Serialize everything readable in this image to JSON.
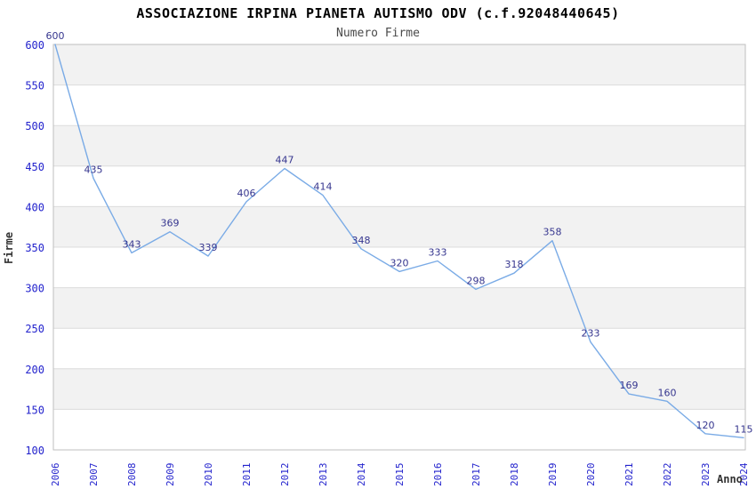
{
  "chart_data": {
    "type": "line",
    "title": "ASSOCIAZIONE IRPINA PIANETA AUTISMO ODV (c.f.92048440645)",
    "subtitle": "Numero Firme",
    "xlabel": "Anno",
    "ylabel": "Firme",
    "categories": [
      "2006",
      "2007",
      "2008",
      "2009",
      "2010",
      "2011",
      "2012",
      "2013",
      "2014",
      "2015",
      "2016",
      "2017",
      "2018",
      "2019",
      "2020",
      "2021",
      "2022",
      "2023",
      "2024"
    ],
    "values": [
      600,
      435,
      343,
      369,
      339,
      406,
      447,
      414,
      348,
      320,
      333,
      298,
      318,
      358,
      233,
      169,
      160,
      120,
      115
    ],
    "ylim": [
      100,
      600
    ],
    "ytick_step": 50,
    "yticks": [
      100,
      150,
      200,
      250,
      300,
      350,
      400,
      450,
      500,
      550,
      600
    ],
    "grid": true,
    "legend_position": "none",
    "point_markers": false,
    "colors": {
      "line": "#7aabe6",
      "point_label": "#36368f",
      "tick_label": "#2323cd",
      "band": "#f2f2f2",
      "grid": "#dcdcdc",
      "border": "#bfbfbf",
      "title": "#000000",
      "subtitle": "#4a4a4a",
      "axis_title": "#333333"
    }
  }
}
